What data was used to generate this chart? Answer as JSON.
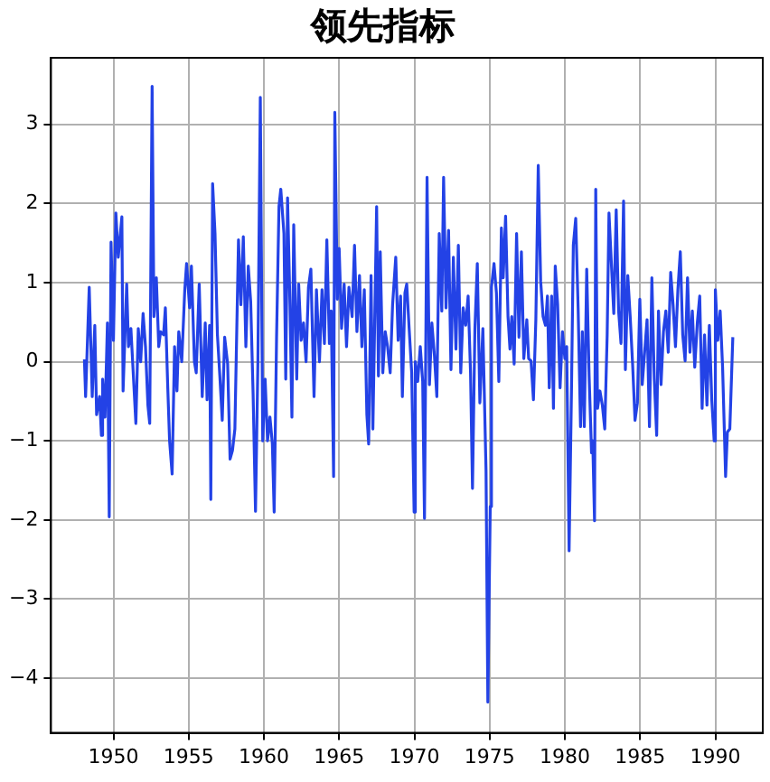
{
  "chart_data": {
    "type": "line",
    "title": "领先指标",
    "x": [
      1948.07,
      1948.15,
      1948.39,
      1948.59,
      1948.76,
      1948.88,
      1949.08,
      1949.2,
      1949.28,
      1949.44,
      1949.6,
      1949.72,
      1949.84,
      1950.0,
      1950.16,
      1950.32,
      1950.56,
      1950.64,
      1950.88,
      1951.0,
      1951.16,
      1951.49,
      1951.65,
      1951.81,
      1951.97,
      1952.13,
      1952.29,
      1952.41,
      1952.57,
      1952.69,
      1952.85,
      1953.01,
      1953.13,
      1953.33,
      1953.45,
      1953.61,
      1953.73,
      1953.9,
      1954.06,
      1954.22,
      1954.34,
      1954.54,
      1954.74,
      1954.86,
      1955.06,
      1955.18,
      1955.38,
      1955.5,
      1955.7,
      1955.9,
      1956.1,
      1956.22,
      1956.39,
      1956.47,
      1956.59,
      1956.75,
      1956.91,
      1957.07,
      1957.23,
      1957.39,
      1957.59,
      1957.75,
      1957.91,
      1958.07,
      1958.31,
      1958.47,
      1958.63,
      1958.8,
      1958.96,
      1959.12,
      1959.28,
      1959.44,
      1959.6,
      1959.76,
      1959.92,
      1960.08,
      1960.24,
      1960.4,
      1960.56,
      1960.68,
      1960.84,
      1961.0,
      1961.12,
      1961.33,
      1961.45,
      1961.57,
      1961.73,
      1961.86,
      1961.98,
      1962.18,
      1962.31,
      1962.47,
      1962.63,
      1962.8,
      1962.96,
      1963.12,
      1963.33,
      1963.49,
      1963.69,
      1963.86,
      1964.02,
      1964.18,
      1964.35,
      1964.47,
      1964.63,
      1964.71,
      1964.88,
      1965.0,
      1965.16,
      1965.33,
      1965.49,
      1965.65,
      1965.86,
      1966.02,
      1966.18,
      1966.35,
      1966.51,
      1966.67,
      1966.84,
      1966.96,
      1967.12,
      1967.24,
      1967.49,
      1967.61,
      1967.73,
      1967.9,
      1968.06,
      1968.22,
      1968.39,
      1968.55,
      1968.76,
      1968.92,
      1969.08,
      1969.2,
      1969.37,
      1969.49,
      1969.65,
      1969.82,
      1969.98,
      1970.06,
      1970.22,
      1970.39,
      1970.55,
      1970.67,
      1970.84,
      1971.0,
      1971.16,
      1971.33,
      1971.49,
      1971.65,
      1971.82,
      1971.94,
      1972.1,
      1972.27,
      1972.43,
      1972.59,
      1972.76,
      1972.92,
      1973.08,
      1973.24,
      1973.41,
      1973.57,
      1973.73,
      1973.86,
      1974.02,
      1974.18,
      1974.35,
      1974.55,
      1974.76,
      1974.88,
      1975.04,
      1975.12,
      1975.29,
      1975.45,
      1975.61,
      1975.78,
      1975.9,
      1976.06,
      1976.22,
      1976.35,
      1976.47,
      1976.63,
      1976.79,
      1976.95,
      1977.11,
      1977.27,
      1977.47,
      1977.59,
      1977.75,
      1977.91,
      1978.07,
      1978.23,
      1978.39,
      1978.55,
      1978.71,
      1978.84,
      1978.96,
      1979.12,
      1979.24,
      1979.36,
      1979.52,
      1979.68,
      1979.84,
      1980.0,
      1980.12,
      1980.28,
      1980.44,
      1980.56,
      1980.72,
      1980.88,
      1981.04,
      1981.16,
      1981.29,
      1981.45,
      1981.61,
      1981.77,
      1981.85,
      1981.97,
      1982.05,
      1982.17,
      1982.33,
      1982.49,
      1982.65,
      1982.81,
      1982.93,
      1983.09,
      1983.25,
      1983.41,
      1983.57,
      1983.73,
      1983.9,
      1984.02,
      1984.18,
      1984.34,
      1984.5,
      1984.66,
      1984.82,
      1984.98,
      1985.14,
      1985.3,
      1985.46,
      1985.62,
      1985.78,
      1985.94,
      1986.1,
      1986.22,
      1986.39,
      1986.55,
      1986.71,
      1986.87,
      1987.03,
      1987.19,
      1987.35,
      1987.51,
      1987.67,
      1987.83,
      1987.99,
      1988.15,
      1988.31,
      1988.47,
      1988.63,
      1988.8,
      1988.96,
      1989.12,
      1989.28,
      1989.44,
      1989.6,
      1989.76,
      1989.92,
      1990.0,
      1990.16,
      1990.32,
      1990.48,
      1990.68,
      1990.8,
      1990.96,
      1991.16
    ],
    "series": [
      {
        "color": "#2342e6",
        "values": [
          0.03,
          -0.44,
          0.94,
          -0.44,
          0.46,
          -0.67,
          -0.44,
          -0.93,
          -0.22,
          -0.7,
          0.49,
          -1.96,
          1.51,
          0.27,
          1.88,
          1.32,
          1.83,
          -0.37,
          0.98,
          0.19,
          0.42,
          -0.78,
          0.42,
          0,
          0.61,
          0.19,
          -0.55,
          -0.78,
          3.48,
          0.57,
          1.06,
          0.19,
          0.38,
          0.34,
          0.68,
          -0.33,
          -1,
          -1.42,
          0.19,
          -0.37,
          0.38,
          0,
          0.91,
          1.24,
          0.68,
          1.21,
          0,
          -0.14,
          0.98,
          -0.44,
          0.49,
          -0.48,
          0.46,
          -1.74,
          2.25,
          1.62,
          0.34,
          -0.18,
          -0.74,
          0.31,
          -0.03,
          -1.23,
          -1.12,
          -0.85,
          1.54,
          0.72,
          1.58,
          0.19,
          1.21,
          0.76,
          -0.4,
          -1.89,
          0,
          3.34,
          -1,
          -0.22,
          -1,
          -0.7,
          -1.04,
          -1.9,
          0.31,
          1.96,
          2.18,
          1.62,
          -0.22,
          2.07,
          0.72,
          -0.7,
          1.73,
          -0.22,
          0.98,
          0.27,
          0.49,
          0,
          0.94,
          1.17,
          -0.44,
          0.91,
          0,
          0.91,
          0.23,
          1.54,
          0.23,
          0.64,
          -1.45,
          3.15,
          0.79,
          1.43,
          0.42,
          0.98,
          0.19,
          0.94,
          0.57,
          1.47,
          0.38,
          1.09,
          0.19,
          0.91,
          -0.67,
          -1.04,
          1.09,
          -0.85,
          1.96,
          -0.18,
          1.39,
          -0.14,
          0.38,
          0.19,
          -0.14,
          0.72,
          1.32,
          0.27,
          0.83,
          -0.44,
          0.87,
          0.98,
          0.42,
          -0.14,
          -1.9,
          0,
          -0.25,
          0.19,
          -0.25,
          -1.98,
          2.33,
          -0.29,
          0.49,
          0.08,
          -0.44,
          1.62,
          0.64,
          2.33,
          0.68,
          1.66,
          -0.1,
          1.32,
          0.16,
          1.47,
          -0.14,
          0.68,
          0.46,
          0.83,
          -0.14,
          -1.6,
          0.42,
          1.24,
          -0.52,
          0.42,
          -1.38,
          -4.3,
          -1.83,
          0.94,
          1.24,
          0.87,
          -0.25,
          1.69,
          1.06,
          1.84,
          0.57,
          0.16,
          0.57,
          -0.03,
          1.62,
          0.31,
          1.39,
          0.04,
          0.53,
          0.04,
          0.01,
          -0.48,
          0.53,
          2.48,
          1.02,
          0.57,
          0.46,
          0.83,
          -0.33,
          0.83,
          -0.59,
          1.21,
          0.72,
          -0.33,
          0.38,
          0.04,
          0.19,
          -2.39,
          -0.33,
          1.47,
          1.81,
          0.68,
          -0.82,
          0.38,
          -0.82,
          1.17,
          -0.18,
          -1.15,
          -1,
          -2.01,
          2.18,
          -0.59,
          -0.37,
          -0.55,
          -0.85,
          0.34,
          1.88,
          1.24,
          0.61,
          1.92,
          0.64,
          0.23,
          2.03,
          -0.1,
          1.09,
          0.57,
          -0.03,
          -0.74,
          -0.52,
          0.79,
          -0.29,
          0.12,
          0.53,
          -0.82,
          1.06,
          -0.22,
          -0.93,
          0.64,
          -0.29,
          0.38,
          0.64,
          0.12,
          1.13,
          0.72,
          0.19,
          0.91,
          1.39,
          0.34,
          0.01,
          1.06,
          0.12,
          0.64,
          -0.07,
          0.49,
          0.83,
          -0.59,
          0.34,
          -0.55,
          0.46,
          -0.48,
          -1,
          0.91,
          0.27,
          0.64,
          -0.07,
          -1.45,
          -0.89,
          -0.85,
          0.31
        ]
      }
    ],
    "xlim": [
      1945.85,
      1993.15
    ],
    "xticks": [
      1950,
      1955,
      1960,
      1965,
      1970,
      1975,
      1980,
      1985,
      1990
    ],
    "ylim": [
      -4.69,
      3.84
    ],
    "yticks": [
      -4,
      -3,
      -2,
      -1,
      0,
      1,
      2,
      3
    ],
    "grid": true,
    "legend": false,
    "marker": "none",
    "line_style": "solid"
  }
}
